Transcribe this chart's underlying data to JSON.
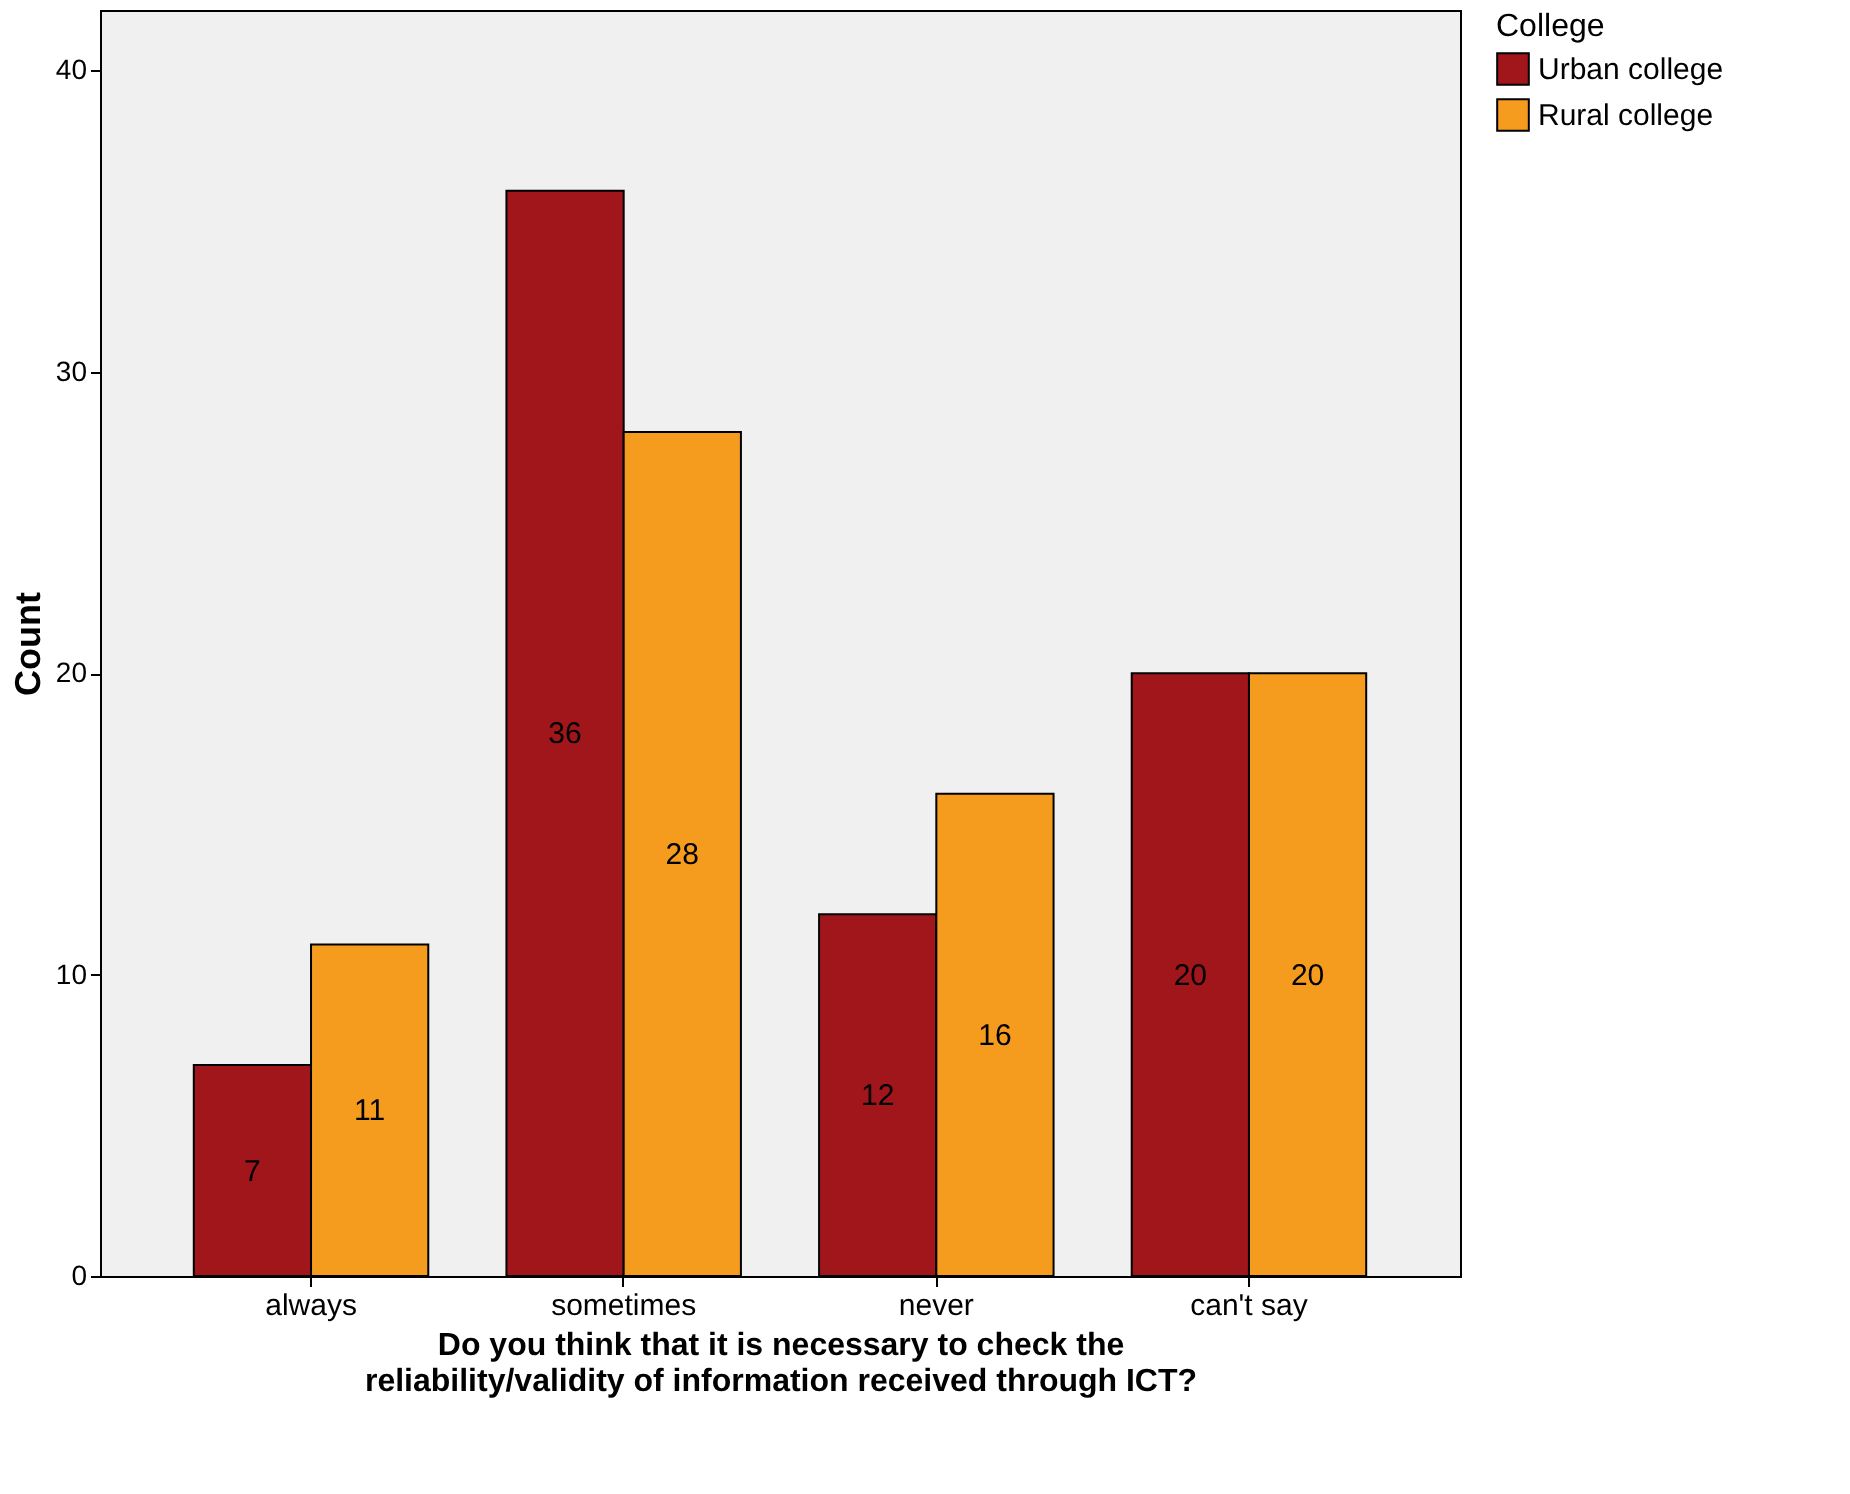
{
  "chart_data": {
    "type": "bar",
    "xlabel": "Do you think that it is necessary to check the\nreliability/validity of information received through ICT?",
    "ylabel": "Count",
    "legend_title": "College",
    "categories": [
      "always",
      "sometimes",
      "never",
      "can't say"
    ],
    "series": [
      {
        "name": "Urban college",
        "color": "#a0161a",
        "values": [
          7,
          36,
          12,
          20
        ]
      },
      {
        "name": "Rural college",
        "color": "#f59c1f",
        "values": [
          11,
          28,
          16,
          20
        ]
      }
    ],
    "ylim": [
      0,
      42
    ],
    "yticks": [
      0,
      10,
      20,
      30,
      40
    ],
    "grid": false,
    "legend": "top right",
    "data_labels": true
  }
}
